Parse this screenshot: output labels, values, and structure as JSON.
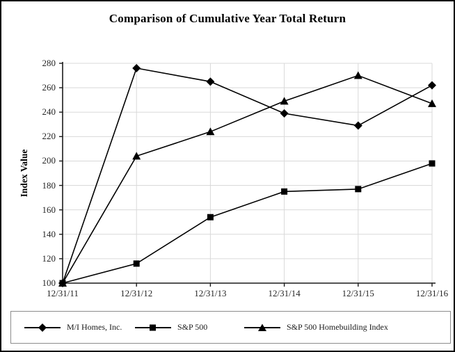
{
  "title": "Comparison of Cumulative Year Total Return",
  "chart_data": {
    "type": "line",
    "title": "Comparison of Cumulative Year Total Return",
    "xlabel": "",
    "ylabel": "Index Value",
    "categories": [
      "12/31/11",
      "12/31/12",
      "12/31/13",
      "12/31/14",
      "12/31/15",
      "12/31/16"
    ],
    "series": [
      {
        "name": "M/I Homes, Inc.",
        "marker": "diamond",
        "values": [
          100,
          276,
          265,
          239,
          229,
          262
        ]
      },
      {
        "name": "S&P 500",
        "marker": "square",
        "values": [
          100,
          116,
          154,
          175,
          177,
          198
        ]
      },
      {
        "name": "S&P 500 Homebuilding Index",
        "marker": "triangle",
        "values": [
          100,
          204,
          224,
          249,
          270,
          247
        ]
      }
    ],
    "ylim": [
      100,
      280
    ],
    "yticks": [
      100,
      120,
      140,
      160,
      180,
      200,
      220,
      240,
      260,
      280
    ],
    "grid": true,
    "legend_position": "bottom"
  },
  "colors": {
    "series": "#000000",
    "gridline": "#d9d9d9",
    "axis": "#1a1a1a",
    "tick_text": "#262626",
    "legend_border": "#8c8c8c",
    "background": "#ffffff"
  }
}
